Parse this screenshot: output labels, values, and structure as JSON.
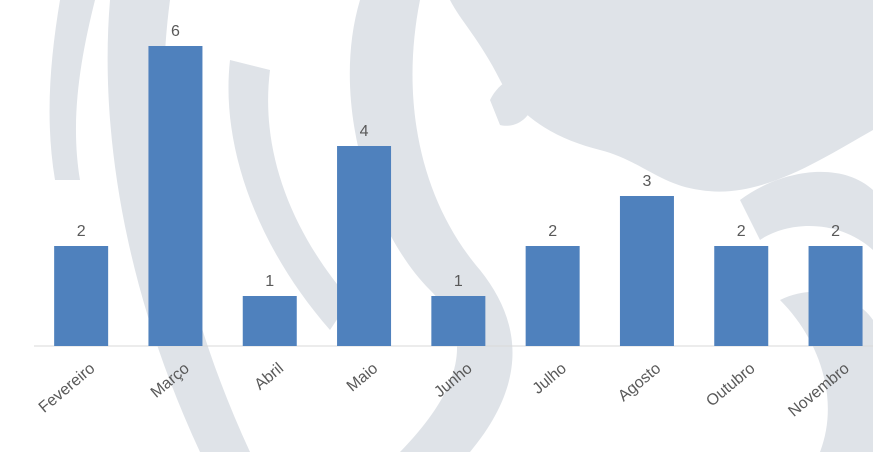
{
  "chart_data": {
    "type": "bar",
    "categories": [
      "Fevereiro",
      "Março",
      "Abril",
      "Maio",
      "Junho",
      "Julho",
      "Agosto",
      "Outubro",
      "Novembro"
    ],
    "values": [
      2,
      6,
      1,
      4,
      1,
      2,
      3,
      2,
      2
    ],
    "color": "#4f81bd"
  }
}
